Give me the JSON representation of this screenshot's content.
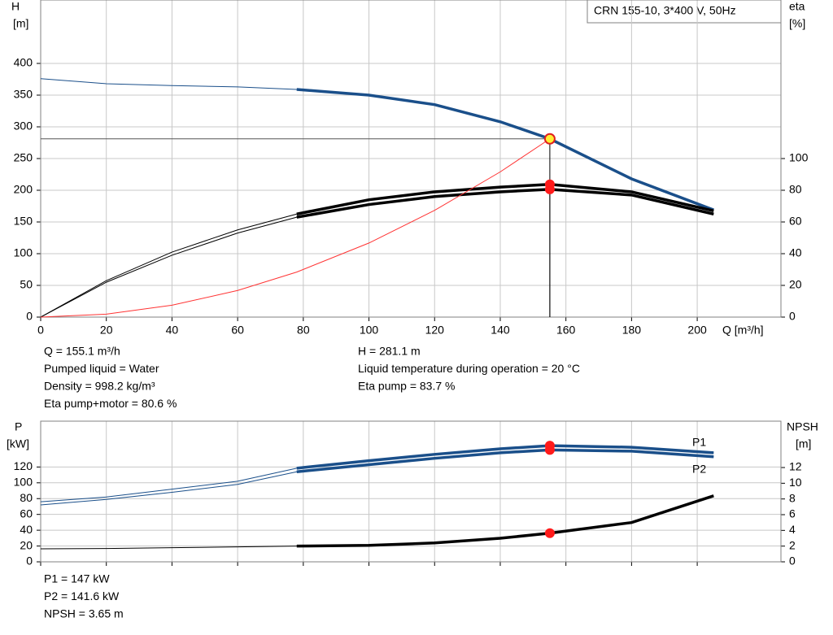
{
  "title": "CRN 155-10, 3*400 V, 50Hz",
  "chart_data": [
    {
      "type": "line",
      "y_label": [
        "H",
        "[m]"
      ],
      "y2_label": [
        "eta",
        "[%]"
      ],
      "x_label": "Q [m³/h]",
      "x": [
        0,
        20,
        40,
        60,
        78,
        100,
        120,
        140,
        155.1,
        180,
        205
      ],
      "xlim": [
        0,
        225.5
      ],
      "xticks": [
        0,
        20,
        40,
        60,
        80,
        100,
        120,
        140,
        160,
        180,
        200
      ],
      "ylim": [
        0,
        500
      ],
      "yticks": [
        0,
        50,
        100,
        150,
        200,
        250,
        300,
        350,
        400
      ],
      "y2lim": [
        0,
        200
      ],
      "y2ticks": [
        0,
        20,
        40,
        60,
        80,
        100
      ],
      "grid": true,
      "series": [
        {
          "color": "#1a4f8a",
          "values": [
            376,
            368,
            365,
            363,
            359,
            350,
            335,
            308,
            281.1,
            218,
            169
          ]
        },
        {
          "color": "#000000",
          "axis": "y2",
          "values": [
            0,
            23,
            41,
            55,
            65,
            74,
            79,
            82,
            83.7,
            79,
            67
          ]
        },
        {
          "color": "#000000",
          "axis": "y2",
          "values": [
            0,
            22,
            39,
            53,
            63,
            71,
            76,
            79,
            80.6,
            77,
            65
          ]
        },
        {
          "color": "#ff3333",
          "values": [
            0,
            4.7,
            18.7,
            42,
            71,
            116.8,
            168.3,
            229,
            281.1,
            null,
            null
          ]
        }
      ]
    },
    {
      "type": "line",
      "y_label": [
        "P",
        "[kW]"
      ],
      "y2_label": [
        "NPSH",
        "[m]"
      ],
      "x": [
        0,
        20,
        40,
        60,
        78,
        100,
        120,
        140,
        155.1,
        180,
        205
      ],
      "xlim": [
        0,
        225.5
      ],
      "ylim": [
        0,
        178
      ],
      "yticks": [
        0,
        20,
        40,
        60,
        80,
        100,
        120
      ],
      "y2lim": [
        0,
        17.9
      ],
      "y2ticks": [
        0,
        2,
        4,
        6,
        8,
        10,
        12
      ],
      "grid": true,
      "series": [
        {
          "name": "P1",
          "color": "#1a4f8a",
          "values": [
            76,
            82,
            92,
            102,
            118.5,
            128,
            136,
            143,
            147,
            145,
            138
          ]
        },
        {
          "name": "P2",
          "color": "#1a4f8a",
          "values": [
            72,
            79,
            88,
            98,
            114,
            123,
            131,
            138,
            141.6,
            140,
            133
          ]
        },
        {
          "color": "#000000",
          "axis": "y2",
          "values": [
            1.65,
            1.7,
            1.8,
            1.9,
            2.0,
            2.1,
            2.4,
            3.0,
            3.65,
            5.0,
            8.4
          ]
        }
      ]
    }
  ],
  "info": {
    "left": [
      "Q = 155.1 m³/h",
      "Pumped liquid = Water",
      "Density = 998.2 kg/m³",
      "Eta pump+motor = 80.6 %"
    ],
    "right": [
      "H = 281.1 m",
      "Liquid temperature during operation = 20 °C",
      "Eta pump = 83.7 %"
    ],
    "bottom": [
      "P1 = 147 kW",
      "P2 = 141.6 kW",
      "NPSH = 3.65 m"
    ]
  }
}
